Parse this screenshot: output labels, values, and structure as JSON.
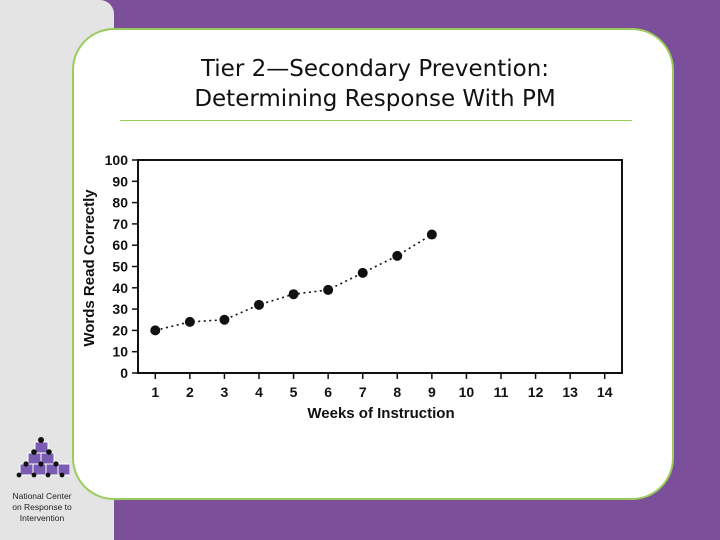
{
  "slide": {
    "title_line1": "Tier 2—Secondary Prevention:",
    "title_line2": "Determining Response With PM"
  },
  "org": {
    "line1": "National Center",
    "line2": "on Response to",
    "line3": "Intervention"
  },
  "colors": {
    "background": "#7b4f9a",
    "panel": "#e4e4e4",
    "card_border": "#9acb5c",
    "logo_cube": "#7b5cb3"
  },
  "chart_data": {
    "type": "scatter",
    "xlabel": "Weeks of Instruction",
    "ylabel": "Words Read Correctly",
    "x_ticks": [
      1,
      2,
      3,
      4,
      5,
      6,
      7,
      8,
      9,
      10,
      11,
      12,
      13,
      14
    ],
    "y_ticks": [
      0,
      10,
      20,
      30,
      40,
      50,
      60,
      70,
      80,
      90,
      100
    ],
    "xlim": [
      0.5,
      14.5
    ],
    "ylim": [
      0,
      100
    ],
    "trend_line": "dotted",
    "series": [
      {
        "name": "Words Read Correctly",
        "x": [
          1,
          2,
          3,
          4,
          5,
          6,
          7,
          8,
          9
        ],
        "y": [
          20,
          24,
          25,
          32,
          37,
          39,
          47,
          55,
          65
        ]
      }
    ]
  }
}
